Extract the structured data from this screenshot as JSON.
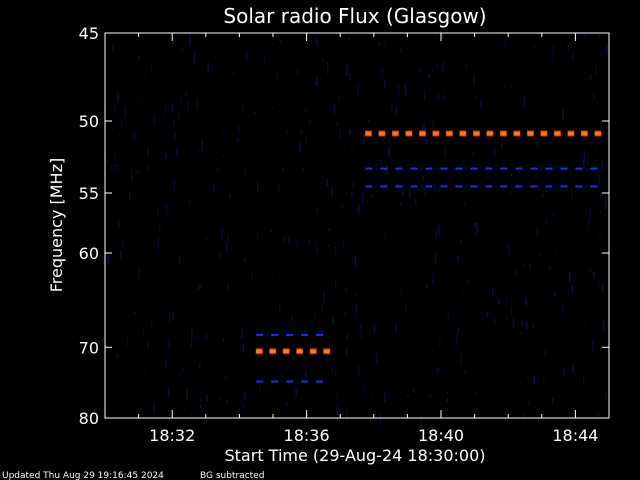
{
  "chart_data": {
    "type": "heatmap",
    "title": "Solar radio Flux (Glasgow)",
    "xlabel": "Start Time (29-Aug-24 18:30:00)",
    "ylabel": "Frequency [MHz]",
    "x_time_range": [
      "18:30:00",
      "18:45:00"
    ],
    "x_ticks": [
      "18:32",
      "18:36",
      "18:40",
      "18:44"
    ],
    "y_ticks": [
      45,
      50,
      55,
      60,
      70,
      80
    ],
    "y_scale": "reciprocal",
    "ylim": [
      45,
      80
    ],
    "background_color": "#000000",
    "bands": [
      {
        "start": "18:34:30",
        "end": "18:36:45",
        "frequency": 70.5,
        "intensity": "high",
        "color": "#ff7a1a"
      },
      {
        "start": "18:34:30",
        "end": "18:36:45",
        "frequency": 68.5,
        "intensity": "low",
        "color": "#1a2dff"
      },
      {
        "start": "18:34:30",
        "end": "18:36:45",
        "frequency": 74.5,
        "intensity": "low",
        "color": "#1a2dff"
      },
      {
        "start": "18:37:45",
        "end": "18:45:00",
        "frequency": 50.8,
        "intensity": "high",
        "color": "#ff7a1a"
      },
      {
        "start": "18:37:45",
        "end": "18:45:00",
        "frequency": 53.2,
        "intensity": "low",
        "color": "#1a2dff"
      },
      {
        "start": "18:37:45",
        "end": "18:45:00",
        "frequency": 54.5,
        "intensity": "low",
        "color": "#1a2dff"
      }
    ]
  },
  "footer": {
    "updated": "Updated Thu Aug 29 19:16:45 2024",
    "note": "BG subtracted"
  }
}
